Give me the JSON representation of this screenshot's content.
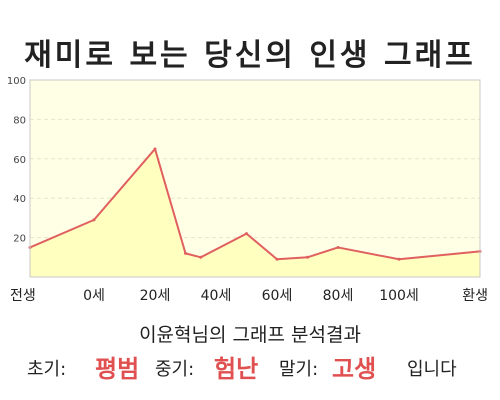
{
  "chart_data": {
    "type": "area",
    "title": "재미로 보는 당신의 인생 그래프",
    "y_ticks": [
      "100",
      "80",
      "60",
      "40",
      "20"
    ],
    "x_tick_labels": [
      "전생",
      "0세",
      "20세",
      "40세",
      "60세",
      "80세",
      "100세",
      "환생"
    ],
    "ylim": [
      0,
      100
    ],
    "grid": true,
    "series": [
      {
        "points": [
          {
            "x": "전생",
            "y": 15
          },
          {
            "x": "0세",
            "y": 29
          },
          {
            "x": "20세",
            "y": 65
          },
          {
            "x": "30세",
            "y": 12
          },
          {
            "x": "35세",
            "y": 10
          },
          {
            "x": "50세",
            "y": 22
          },
          {
            "x": "60세",
            "y": 9
          },
          {
            "x": "70세",
            "y": 10
          },
          {
            "x": "80세",
            "y": 15
          },
          {
            "x": "100세",
            "y": 9
          },
          {
            "x": "환생",
            "y": 13
          }
        ]
      }
    ],
    "colors": {
      "line": "#e06060",
      "fill": "#ffffc0",
      "plot_bg": "#ffffe6",
      "grid": "#e6e6cc"
    }
  },
  "caption": {
    "subtitle": "이윤혁님의 그래프 분석결과",
    "early_label": "초기:",
    "early_value": "평범",
    "middle_label": "중기:",
    "middle_value": "험난",
    "late_label": "말기:",
    "late_value": "고생",
    "suffix": "입니다",
    "highlight_color": "#e05050"
  }
}
